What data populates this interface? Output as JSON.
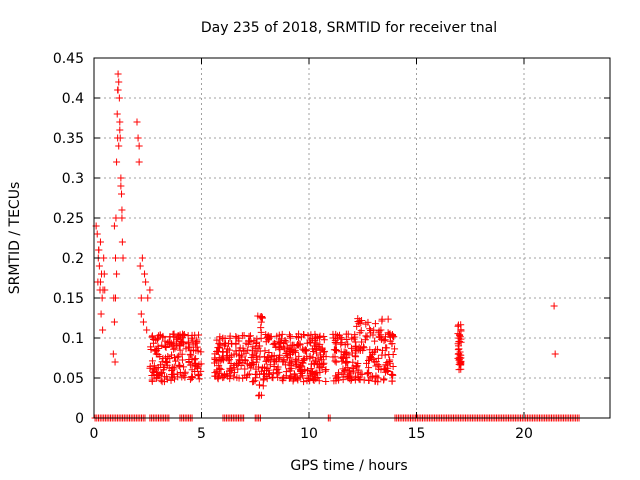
{
  "chart_data": {
    "type": "scatter",
    "title": "Day 235 of 2018, SRMTID for receiver tnal",
    "xlabel": "GPS time / hours",
    "ylabel": "SRMTID / TECUs",
    "xlim": [
      0,
      24
    ],
    "ylim": [
      0,
      0.45
    ],
    "xticks": [
      0,
      5,
      10,
      15,
      20
    ],
    "yticks": [
      0,
      0.05,
      0.1,
      0.15,
      0.2,
      0.25,
      0.3,
      0.35,
      0.4,
      0.45
    ],
    "xtick_labels": [
      "0",
      "5",
      "10",
      "15",
      "20"
    ],
    "ytick_labels": [
      "0",
      "0.05",
      "0.1",
      "0.15",
      "0.2",
      "0.25",
      "0.3",
      "0.35",
      "0.4",
      "0.45"
    ],
    "grid": true,
    "marker": "+",
    "color": "#ff0000",
    "series": [
      {
        "x": [
          0.1,
          0.15,
          0.2,
          0.22,
          0.25,
          0.28,
          0.3,
          0.33,
          0.35,
          0.38,
          0.4,
          0.42,
          0.45,
          0.48,
          0.5,
          0.3,
          0.22,
          0.18,
          0.9,
          0.95,
          1.0,
          1.02,
          1.05,
          1.08,
          1.1,
          1.12,
          1.15,
          1.18,
          1.2,
          1.22,
          1.25,
          1.28,
          1.3,
          1.32,
          1.35,
          1.0,
          1.05,
          1.1,
          0.95,
          1.15,
          1.25,
          0.98,
          1.12,
          1.2,
          0.92,
          1.3,
          2.0,
          2.05,
          2.1,
          2.15,
          2.2,
          2.25,
          2.3,
          2.4,
          2.5,
          2.6,
          2.1,
          2.2,
          2.35,
          2.45,
          21.4,
          21.45
        ],
        "y": [
          0.24,
          0.23,
          0.2,
          0.21,
          0.19,
          0.16,
          0.17,
          0.13,
          0.18,
          0.15,
          0.11,
          0.16,
          0.2,
          0.18,
          0.16,
          0.22,
          0.21,
          0.17,
          0.08,
          0.12,
          0.2,
          0.25,
          0.32,
          0.38,
          0.41,
          0.43,
          0.42,
          0.4,
          0.36,
          0.35,
          0.3,
          0.28,
          0.25,
          0.22,
          0.2,
          0.15,
          0.18,
          0.35,
          0.24,
          0.34,
          0.29,
          0.07,
          0.41,
          0.37,
          0.15,
          0.26,
          0.37,
          0.35,
          0.32,
          0.19,
          0.15,
          0.2,
          0.12,
          0.17,
          0.15,
          0.16,
          0.34,
          0.13,
          0.18,
          0.11,
          0.14,
          0.08
        ]
      }
    ]
  }
}
